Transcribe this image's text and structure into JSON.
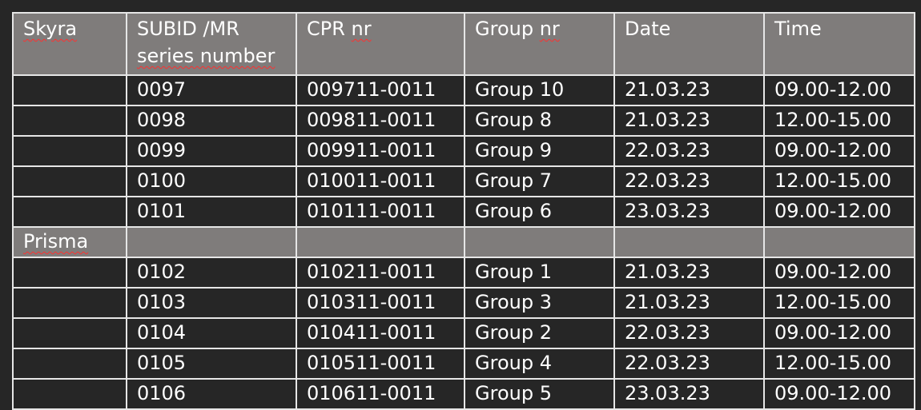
{
  "headers": [
    "Skyra",
    "SUBID /MR series number",
    "CPR nr",
    "Group nr",
    "Date",
    "Time"
  ],
  "header_subid_line1": "SUBID /MR",
  "header_subid_line2": "series number",
  "sections": [
    {
      "name": "",
      "rows": [
        {
          "subid": "0097",
          "cpr": "009711-0011",
          "group": "Group 10",
          "date": "21.03.23",
          "time": "09.00-12.00"
        },
        {
          "subid": "0098",
          "cpr": "009811-0011",
          "group": "Group 8",
          "date": "21.03.23",
          "time": "12.00-15.00"
        },
        {
          "subid": "0099",
          "cpr": "009911-0011",
          "group": "Group 9",
          "date": "22.03.23",
          "time": "09.00-12.00"
        },
        {
          "subid": "0100",
          "cpr": "010011-0011",
          "group": "Group 7",
          "date": "22.03.23",
          "time": "12.00-15.00"
        },
        {
          "subid": "0101",
          "cpr": "010111-0011",
          "group": "Group 6",
          "date": "23.03.23",
          "time": "09.00-12.00"
        }
      ]
    },
    {
      "name": "Prisma",
      "rows": [
        {
          "subid": "0102",
          "cpr": "010211-0011",
          "group": "Group 1",
          "date": "21.03.23",
          "time": "09.00-12.00"
        },
        {
          "subid": "0103",
          "cpr": "010311-0011",
          "group": "Group 3",
          "date": "21.03.23",
          "time": "12.00-15.00"
        },
        {
          "subid": "0104",
          "cpr": "010411-0011",
          "group": "Group 2",
          "date": "22.03.23",
          "time": "09.00-12.00"
        },
        {
          "subid": "0105",
          "cpr": "010511-0011",
          "group": "Group 4",
          "date": "22.03.23",
          "time": "12.00-15.00"
        },
        {
          "subid": "0106",
          "cpr": "010611-0011",
          "group": "Group 5",
          "date": "23.03.23",
          "time": "09.00-12.00"
        }
      ]
    }
  ],
  "colors": {
    "header_bg": "#7f7c7b",
    "body_bg": "#262626",
    "border": "#e6e6e6",
    "spellcheck": "#ff3030"
  }
}
